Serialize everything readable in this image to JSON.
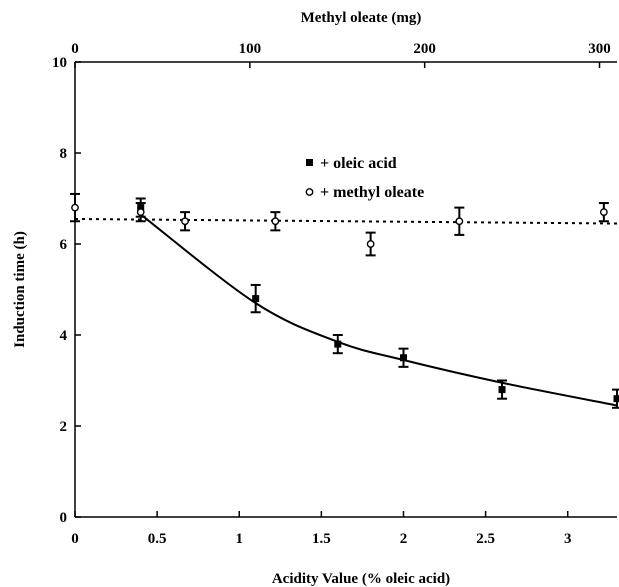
{
  "chart_data": {
    "type": "scatter",
    "title": "",
    "xlabel": "Acidity Value (% oleic acid)",
    "x2label": "Methyl oleate (mg)",
    "ylabel": "Induction time (h)",
    "xlim": [
      0,
      3.3
    ],
    "x2lim": [
      0,
      310
    ],
    "ylim": [
      0,
      10
    ],
    "xticks": [
      "0",
      "0.5",
      "1",
      "1.5",
      "2",
      "2.5",
      "3"
    ],
    "x2ticks": [
      "0",
      "100",
      "200",
      "300"
    ],
    "yticks": [
      "0",
      "2",
      "4",
      "6",
      "8",
      "10"
    ],
    "grid": false,
    "legend_position": "top-center",
    "series": [
      {
        "name": "+ oleic acid",
        "marker": "filled-square",
        "axis": "bottom",
        "x": [
          0.4,
          1.1,
          1.6,
          2.0,
          2.6,
          3.3
        ],
        "y": [
          6.8,
          4.8,
          3.8,
          3.5,
          2.8,
          2.6
        ],
        "err": [
          0.2,
          0.3,
          0.2,
          0.2,
          0.2,
          0.2
        ],
        "fit": "curve"
      },
      {
        "name": "+ methyl oleate",
        "marker": "open-circle",
        "axis": "bottom",
        "x": [
          0.0,
          0.4,
          0.67,
          1.22,
          1.8,
          2.34,
          3.22
        ],
        "y": [
          6.8,
          6.7,
          6.5,
          6.5,
          6.0,
          6.5,
          6.7
        ],
        "err": [
          0.3,
          0.2,
          0.2,
          0.2,
          0.25,
          0.3,
          0.2
        ],
        "fit": "dashed-line"
      }
    ],
    "fits": {
      "oleic_curve": {
        "x": [
          0.4,
          1.1,
          1.6,
          2.0,
          2.6,
          3.3
        ],
        "y": [
          6.65,
          4.7,
          3.85,
          3.45,
          2.95,
          2.45
        ]
      },
      "methyl_line": {
        "x": [
          0,
          3.3
        ],
        "y": [
          6.55,
          6.45
        ]
      }
    }
  }
}
